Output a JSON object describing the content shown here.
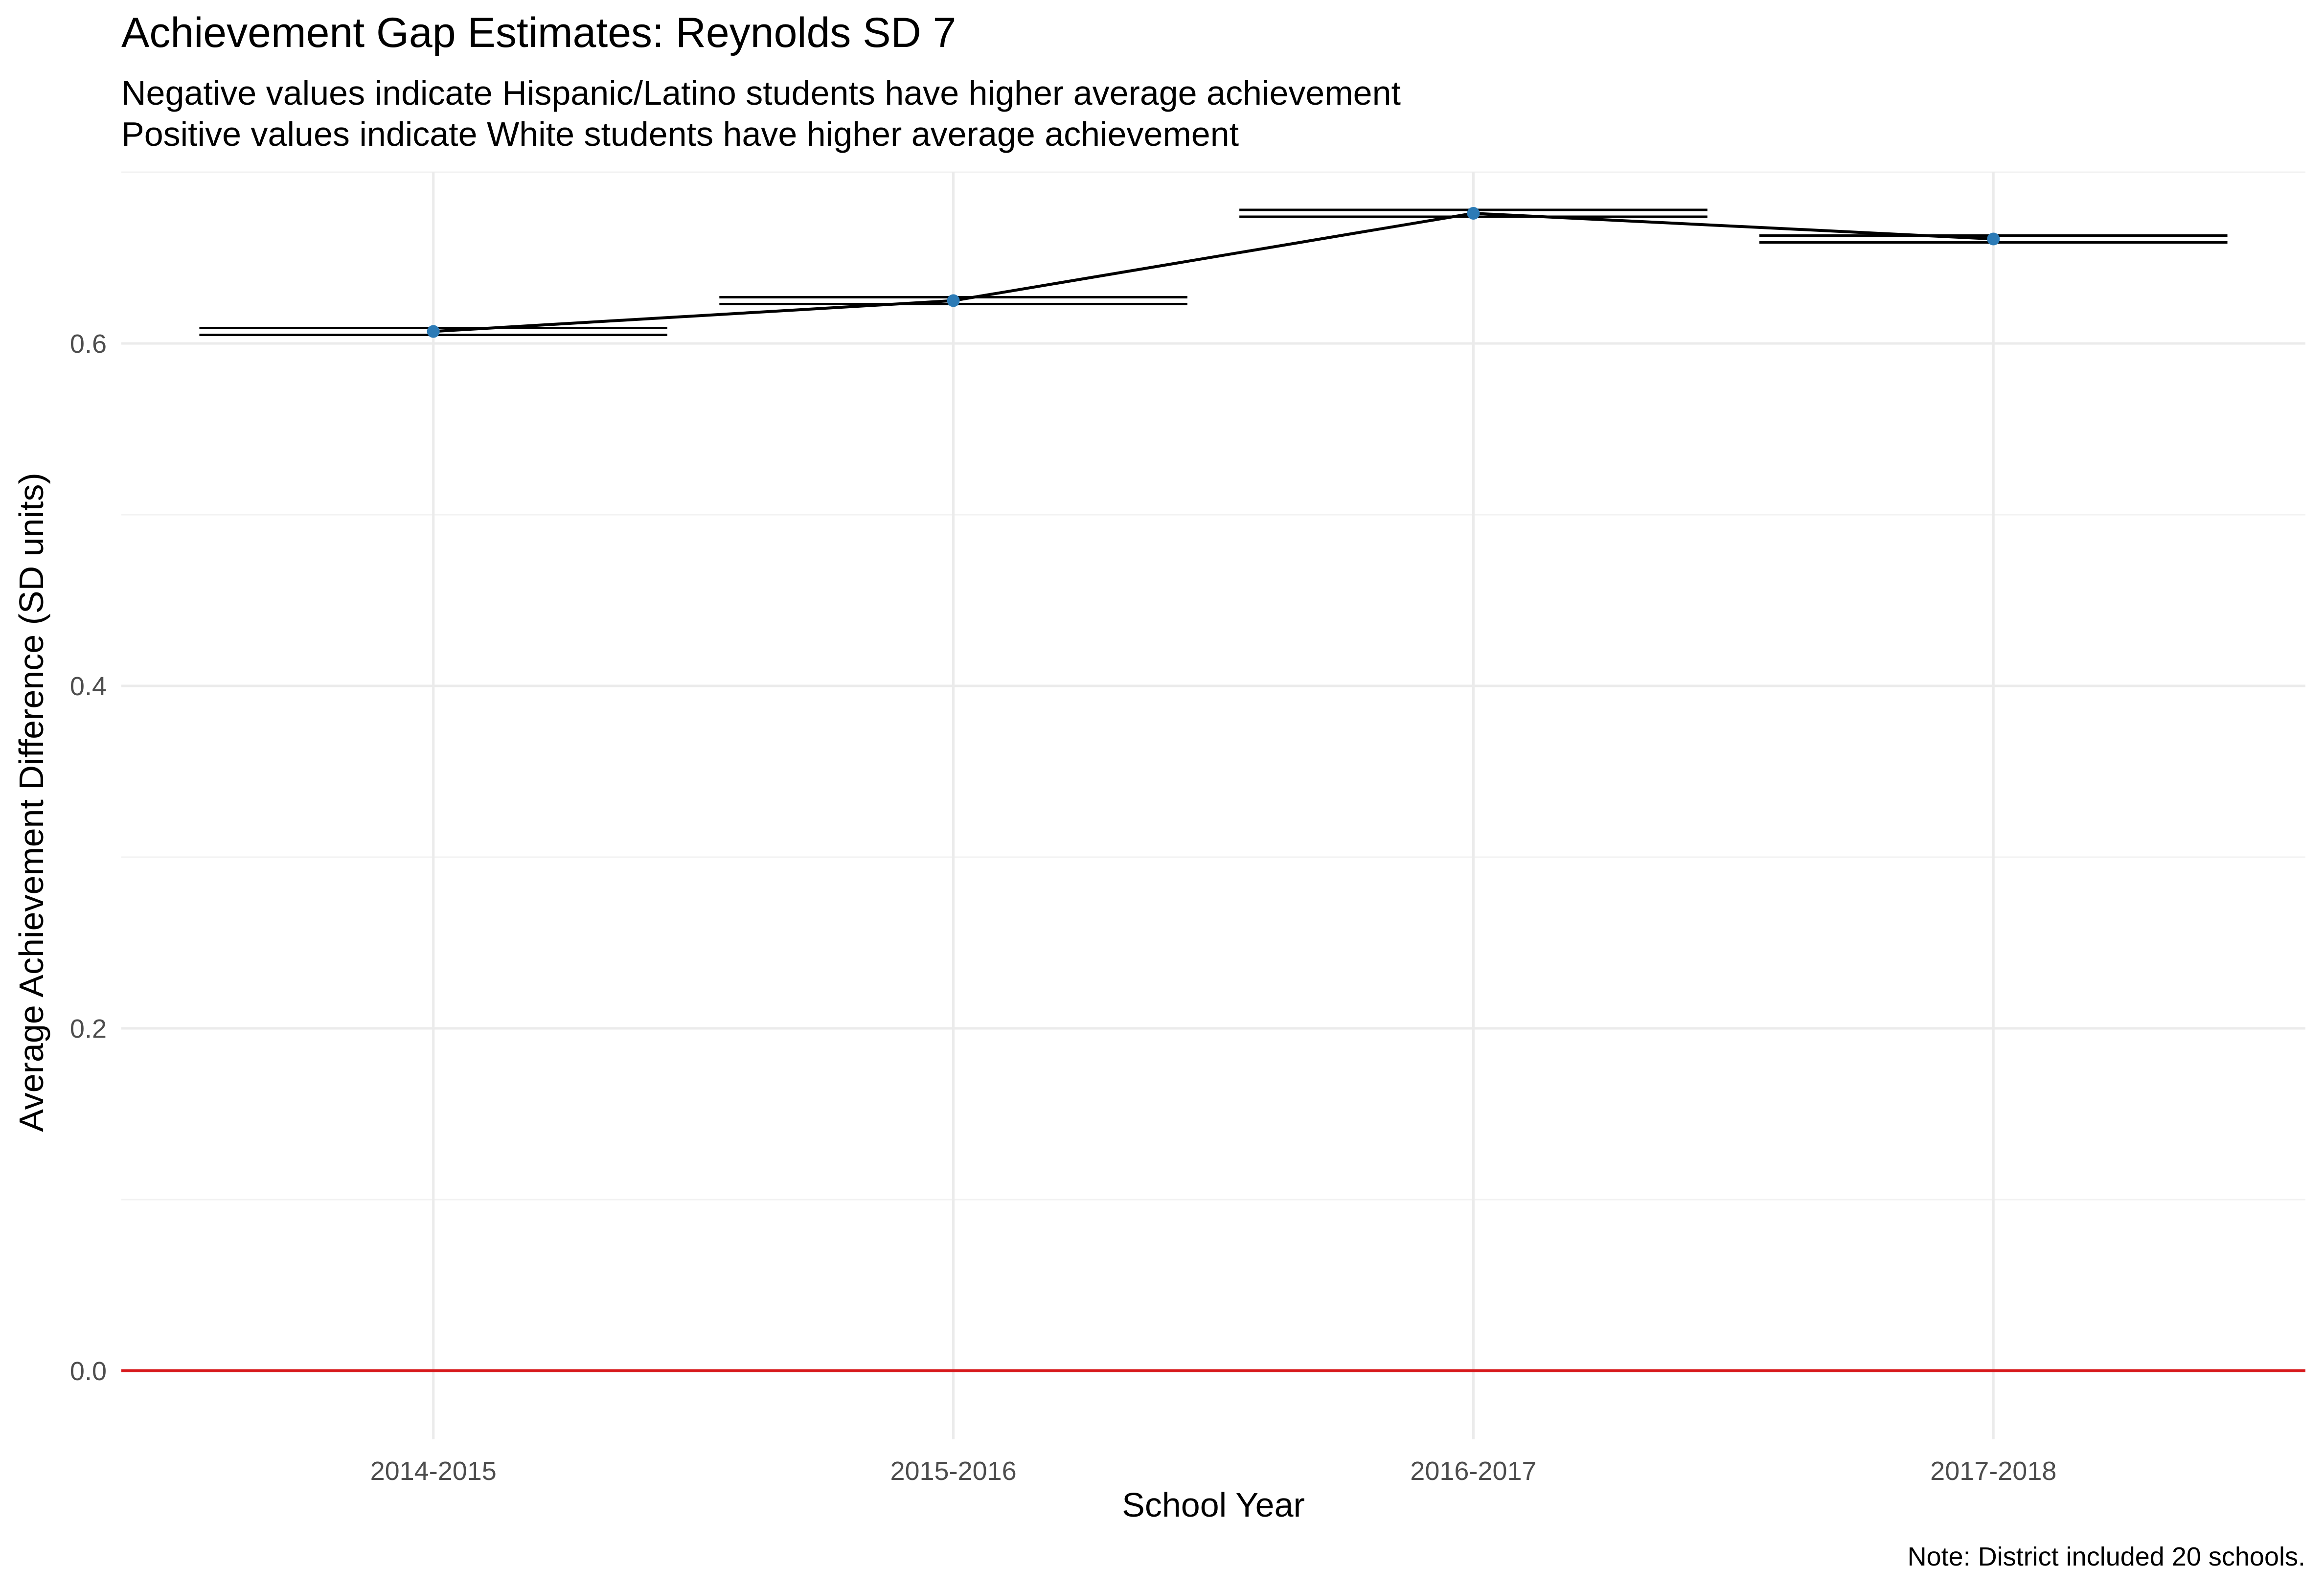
{
  "chart_data": {
    "type": "line",
    "title": "Achievement Gap Estimates: Reynolds SD 7",
    "subtitle": [
      "Negative values indicate Hispanic/Latino students have higher average achievement",
      "Positive values indicate White students have higher average achievement"
    ],
    "xlabel": "School Year",
    "ylabel": "Average Achievement Difference (SD units)",
    "caption": "Note: District included 20 schools.",
    "categories": [
      "2014-2015",
      "2015-2016",
      "2016-2017",
      "2017-2018"
    ],
    "series": [
      {
        "values": [
          0.607,
          0.625,
          0.676,
          0.661
        ],
        "ci_lower": [
          0.605,
          0.623,
          0.674,
          0.659
        ],
        "ci_upper": [
          0.609,
          0.627,
          0.678,
          0.663
        ]
      }
    ],
    "y_ticks": [
      0.0,
      0.2,
      0.4,
      0.6
    ],
    "y_tick_labels": [
      "0.0",
      "0.2",
      "0.4",
      "0.6"
    ],
    "ylim": [
      -0.04,
      0.7
    ],
    "reference_line": {
      "y": 0,
      "color": "#d7191c"
    },
    "point_color": "#2c7bb6",
    "line_color": "#000000",
    "grid": true
  }
}
